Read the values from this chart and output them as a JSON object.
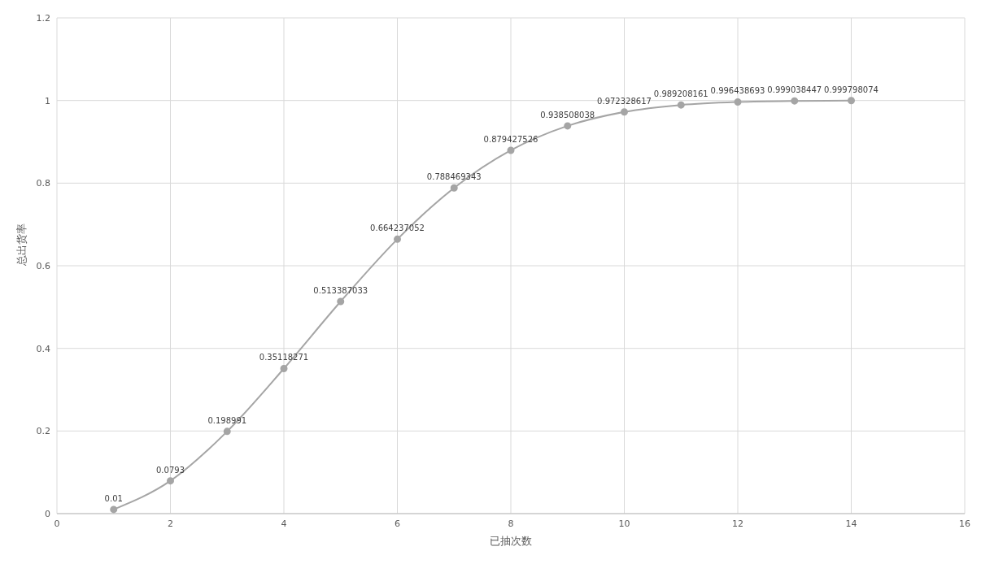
{
  "chart_data": {
    "type": "line",
    "xlabel": "已抽次数",
    "ylabel": "总出货率",
    "x": [
      1,
      2,
      3,
      4,
      5,
      6,
      7,
      8,
      9,
      10,
      11,
      12,
      13,
      14
    ],
    "series": [
      {
        "color": "#a5a5a5",
        "values": [
          0.01,
          0.0793,
          0.198991,
          0.35118271,
          0.513387033,
          0.664237052,
          0.788469343,
          0.879427526,
          0.938508038,
          0.972328617,
          0.989208161,
          0.996438693,
          0.999038447,
          0.999798074
        ]
      }
    ],
    "xlim": [
      0,
      16
    ],
    "xticks": [
      0,
      2,
      4,
      6,
      8,
      10,
      12,
      14,
      16
    ],
    "ylim": [
      0,
      1.2
    ],
    "yticks": [
      0,
      0.2,
      0.4,
      0.6,
      0.8,
      1,
      1.2
    ],
    "grid": true,
    "legend": false,
    "marker": "circle",
    "line_style": "solid",
    "data_labels": true
  }
}
